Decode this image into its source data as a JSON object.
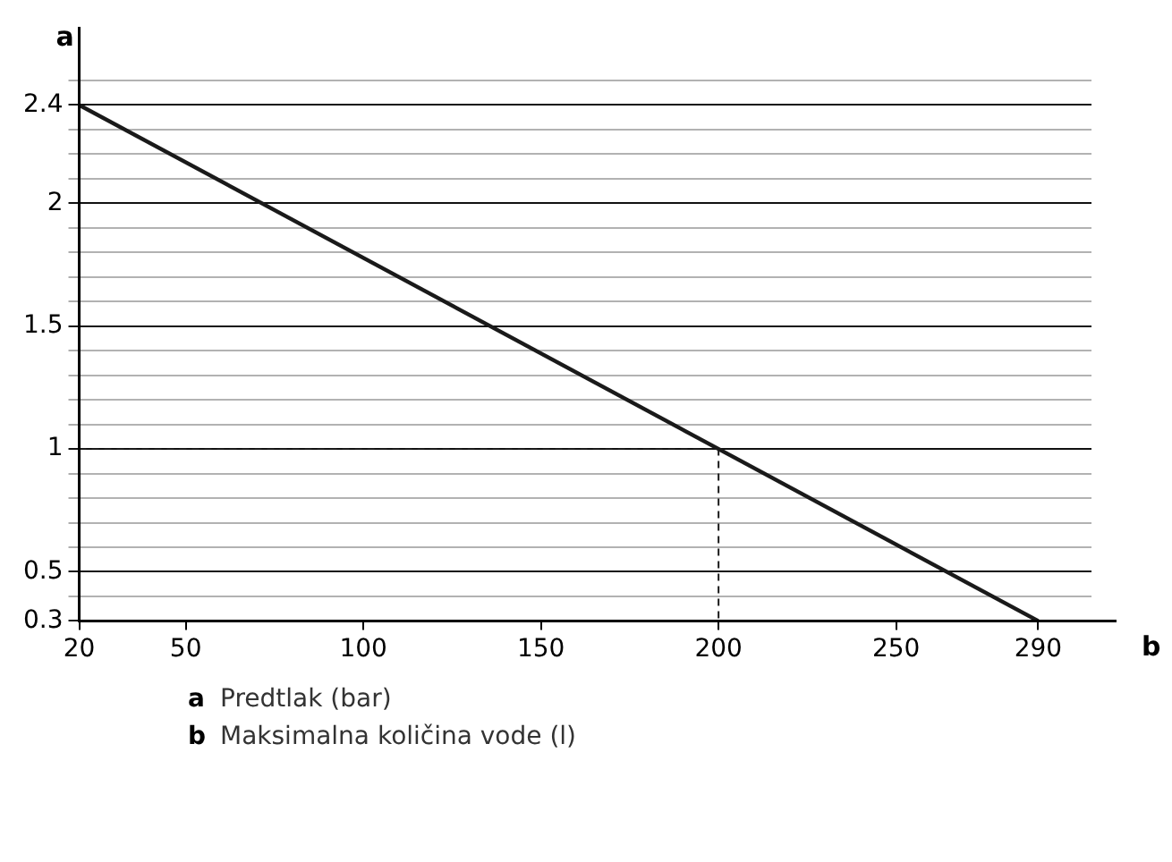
{
  "chart_data": {
    "type": "line",
    "xlabel": "b",
    "ylabel": "a",
    "xlim": [
      20,
      305
    ],
    "xticks": [
      20,
      50,
      100,
      150,
      200,
      250,
      290
    ],
    "ylim": [
      0.3,
      2.5
    ],
    "yticks": [
      0.3,
      {
        "value": 0.4,
        "label": null
      },
      0.5,
      {
        "value": 0.6,
        "label": null
      },
      {
        "value": 0.7,
        "label": null
      },
      {
        "value": 0.8,
        "label": null
      },
      {
        "value": 0.9,
        "label": null
      },
      1,
      {
        "value": 1.1,
        "label": null
      },
      {
        "value": 1.2,
        "label": null
      },
      {
        "value": 1.3,
        "label": null
      },
      {
        "value": 1.4,
        "label": null
      },
      1.5,
      {
        "value": 1.6,
        "label": null
      },
      {
        "value": 1.7,
        "label": null
      },
      {
        "value": 1.8,
        "label": null
      },
      {
        "value": 1.9,
        "label": null
      },
      2,
      {
        "value": 2.1,
        "label": null
      },
      {
        "value": 2.2,
        "label": null
      },
      {
        "value": 2.3,
        "label": null
      },
      2.4,
      {
        "value": 2.5,
        "label": null
      }
    ],
    "grid": "y",
    "marker": "none",
    "series": [
      {
        "x": [
          20,
          290
        ],
        "values": [
          2.4,
          0.3
        ],
        "color": "#1a1a1a",
        "line_style": "solid"
      },
      {
        "x": [
          20,
          200,
          200
        ],
        "values": [
          1,
          1,
          0.3
        ],
        "color": "#1a1a1a",
        "line_style": "dashed"
      }
    ],
    "annotations": [
      "a Predtlak (bar)",
      "b Maksimalna količina vode (l)"
    ]
  }
}
